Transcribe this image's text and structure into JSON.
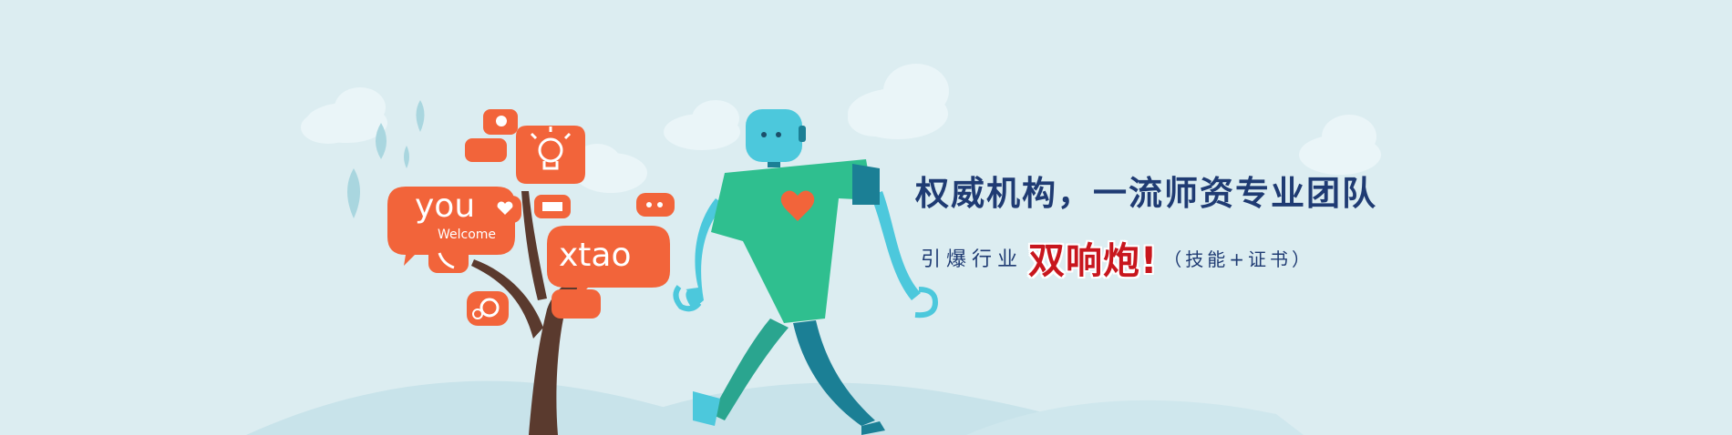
{
  "banner": {
    "headline": "权威机构，一流师资专业团队",
    "subline": {
      "lead": "引爆行业",
      "highlight": "双响炮!",
      "paren": "（技能+证书）"
    }
  },
  "illustration": {
    "bubble_you": "you",
    "bubble_welcome": "Welcome",
    "bubble_xtao": "xtao",
    "icons": [
      "cat-icon",
      "lightbulb-icon",
      "heart-icon",
      "book-icon",
      "phone-icon",
      "gears-icon",
      "chat-icon"
    ]
  },
  "colors": {
    "background": "#dcedf1",
    "headline": "#1f3b73",
    "highlight": "#c8161d",
    "bubble": "#f2643a",
    "robot_body": "#2fbf8f",
    "robot_limb": "#4cc8dc",
    "tree": "#5a3a2e"
  }
}
